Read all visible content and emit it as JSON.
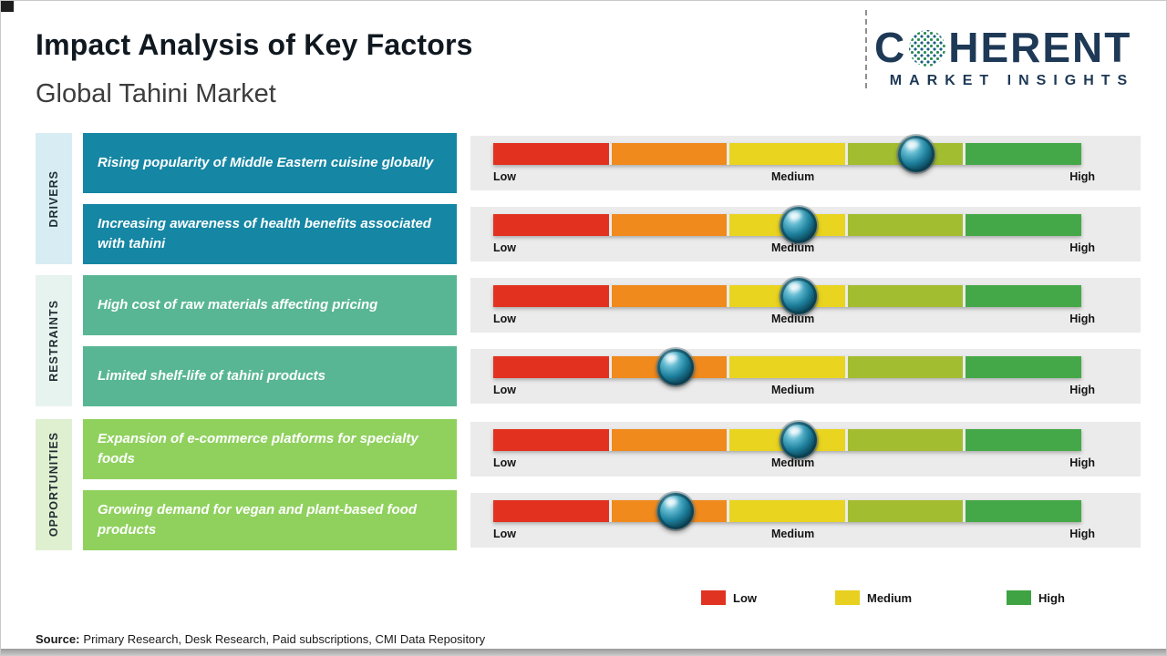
{
  "header": {
    "title": "Impact Analysis of Key Factors",
    "subtitle": "Global Tahini Market"
  },
  "logo": {
    "prefix": "C",
    "suffix": "HERENT",
    "tagline": "MARKET INSIGHTS",
    "globe_icon": "dotted-globe-as-letter-O",
    "brand_color": "#1e3956"
  },
  "categories": [
    {
      "id": "drivers",
      "label": "DRIVERS",
      "box_color": "#1586a3",
      "strip_color": "#d7ecf3"
    },
    {
      "id": "restraints",
      "label": "RESTRAINTS",
      "box_color": "#58b694",
      "strip_color": "#e7f3ee"
    },
    {
      "id": "opportunities",
      "label": "OPPORTUNITIES",
      "box_color": "#90d15e",
      "strip_color": "#dff0d1"
    }
  ],
  "scale": {
    "low": "Low",
    "medium": "Medium",
    "high": "High"
  },
  "rows": [
    {
      "category": "DRIVERS",
      "text": "Rising popularity of Middle Eastern cuisine globally",
      "impact_pct": 72,
      "impact_level": "Medium-High"
    },
    {
      "category": "DRIVERS",
      "text": "Increasing awareness of health benefits associated with tahini",
      "impact_pct": 52,
      "impact_level": "Medium"
    },
    {
      "category": "RESTRAINTS",
      "text": "High cost of raw materials affecting pricing",
      "impact_pct": 52,
      "impact_level": "Medium"
    },
    {
      "category": "RESTRAINTS",
      "text": "Limited shelf-life of tahini products",
      "impact_pct": 31,
      "impact_level": "Low-Medium"
    },
    {
      "category": "OPPORTUNITIES",
      "text": "Expansion of e-commerce platforms for specialty foods",
      "impact_pct": 52,
      "impact_level": "Medium"
    },
    {
      "category": "OPPORTUNITIES",
      "text": "Growing demand for vegan and plant-based food products",
      "impact_pct": 31,
      "impact_level": "Low-Medium"
    }
  ],
  "colors": {
    "segments": [
      "#e2321f",
      "#f08a1d",
      "#e9d41f",
      "#a3bd31",
      "#45a848"
    ],
    "panel_bg": "#ebebeb",
    "marker": "#0b4456"
  },
  "legend": [
    {
      "label": "Low",
      "color": "#e03322"
    },
    {
      "label": "Medium",
      "color": "#e8d020"
    },
    {
      "label": "High",
      "color": "#3fa344"
    }
  ],
  "source": {
    "label": "Source:",
    "text": "Primary Research, Desk Research, Paid subscriptions, CMI Data Repository"
  },
  "chart_data": {
    "type": "scatter",
    "title": "Impact Analysis of Key Factors",
    "subtitle": "Global Tahini Market",
    "x_scale": {
      "min": 0,
      "max": 100,
      "ticks": [
        {
          "pos": 0,
          "label": "Low"
        },
        {
          "pos": 50,
          "label": "Medium"
        },
        {
          "pos": 100,
          "label": "High"
        }
      ]
    },
    "gradient_scale_segments": [
      "red",
      "orange",
      "yellow",
      "yellow-green",
      "green"
    ],
    "series": [
      {
        "category": "Drivers",
        "factor": "Rising popularity of Middle Eastern cuisine globally",
        "impact": 72
      },
      {
        "category": "Drivers",
        "factor": "Increasing awareness of health benefits associated with tahini",
        "impact": 52
      },
      {
        "category": "Restraints",
        "factor": "High cost of raw materials affecting pricing",
        "impact": 52
      },
      {
        "category": "Restraints",
        "factor": "Limited shelf-life of tahini products",
        "impact": 31
      },
      {
        "category": "Opportunities",
        "factor": "Expansion of e-commerce platforms for specialty foods",
        "impact": 52
      },
      {
        "category": "Opportunities",
        "factor": "Growing demand for vegan and plant-based food products",
        "impact": 31
      }
    ],
    "legend_entries": [
      "Low",
      "Medium",
      "High"
    ],
    "legend_position": "bottom-right",
    "grid": false
  }
}
